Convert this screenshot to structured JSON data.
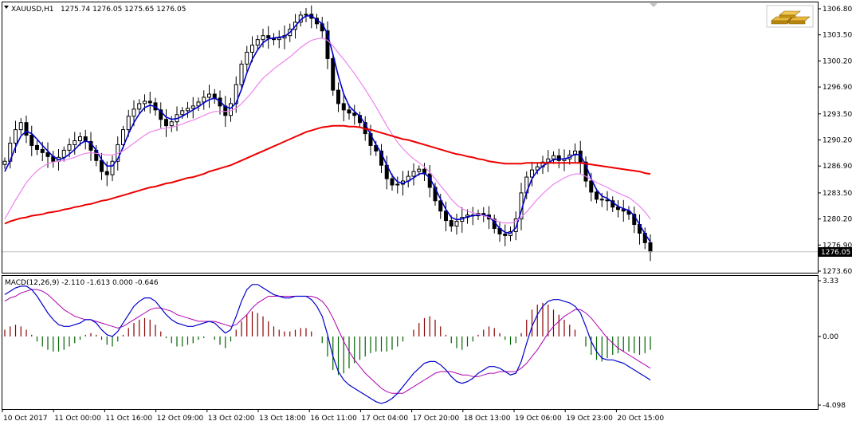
{
  "header": {
    "symbol": "XAUUSD,H1",
    "ohlc": "1275.74 1276.05 1275.65 1276.05",
    "icon": "gold-bars-icon"
  },
  "macd_header": {
    "label": "MACD(12,26,9) -2.110 -1.613 0.000 -0.646"
  },
  "colors": {
    "background": "#ffffff",
    "candle": "#000000",
    "ma_fast": "#0000cc",
    "ma_mid": "#ee82ee",
    "ma_slow": "#ee0000",
    "macd_up": "#8b0000",
    "macd_down": "#006400",
    "macd_line": "#0000cc",
    "signal_line": "#b000b0",
    "current_price_line": "#c0c0c0"
  },
  "chart_data": [
    {
      "type": "candlestick",
      "title": "XAUUSD,H1",
      "y_ticks": [
        1306.8,
        1303.5,
        1300.2,
        1296.9,
        1293.5,
        1290.2,
        1286.9,
        1283.5,
        1280.2,
        1276.9,
        1273.6
      ],
      "y_tick_labels": [
        "1306.80",
        "1303.50",
        "1300.20",
        "1296.90",
        "1293.50",
        "1290.20",
        "1286.90",
        "1283.50",
        "1280.20",
        "1276.90",
        "1273.60"
      ],
      "ylim": [
        1273.6,
        1306.8
      ],
      "current_price": 1276.05,
      "current_price_label": "1276.05",
      "x_labels": [
        "10 Oct 2017",
        "11 Oct 00:00",
        "11 Oct 16:00",
        "12 Oct 09:00",
        "13 Oct 02:00",
        "13 Oct 18:00",
        "16 Oct 11:00",
        "17 Oct 04:00",
        "17 Oct 20:00",
        "18 Oct 13:00",
        "19 Oct 06:00",
        "19 Oct 23:00",
        "20 Oct 15:00"
      ],
      "closes": [
        1287.5,
        1289.8,
        1291.5,
        1292.4,
        1290.8,
        1289.5,
        1289.0,
        1288.6,
        1288.1,
        1287.5,
        1288.0,
        1288.9,
        1289.6,
        1290.1,
        1290.6,
        1290.0,
        1288.9,
        1287.6,
        1286.2,
        1285.8,
        1287.5,
        1289.6,
        1291.5,
        1293.2,
        1294.1,
        1294.8,
        1295.1,
        1294.9,
        1294.0,
        1292.8,
        1292.0,
        1292.5,
        1293.4,
        1293.9,
        1294.2,
        1294.5,
        1295.0,
        1295.6,
        1296.0,
        1295.5,
        1294.5,
        1293.3,
        1294.8,
        1297.2,
        1299.8,
        1301.3,
        1302.2,
        1302.9,
        1303.4,
        1303.1,
        1302.9,
        1303.1,
        1303.4,
        1304.2,
        1305.1,
        1306.0,
        1306.1,
        1305.6,
        1304.9,
        1304.0,
        1300.5,
        1296.5,
        1294.8,
        1294.0,
        1293.6,
        1293.3,
        1292.4,
        1291.0,
        1289.5,
        1288.8,
        1287.0,
        1285.3,
        1284.5,
        1284.6,
        1285.0,
        1285.6,
        1286.2,
        1286.5,
        1285.9,
        1284.2,
        1282.5,
        1281.2,
        1280.0,
        1279.3,
        1279.9,
        1280.4,
        1280.7,
        1280.6,
        1280.9,
        1280.7,
        1280.2,
        1279.0,
        1278.3,
        1278.1,
        1278.6,
        1280.2,
        1283.5,
        1285.5,
        1286.4,
        1286.8,
        1287.4,
        1287.8,
        1288.2,
        1287.6,
        1287.8,
        1288.3,
        1288.8,
        1287.4,
        1285.0,
        1283.6,
        1282.7,
        1282.6,
        1282.5,
        1281.7,
        1281.4,
        1281.2,
        1280.8,
        1279.5,
        1278.4,
        1277.2,
        1276.05
      ],
      "series": [
        {
          "name": "",
          "values": [
            1286.2,
            1287.6,
            1289.3,
            1290.7,
            1291.3,
            1291.0,
            1290.3,
            1289.5,
            1288.8,
            1288.1,
            1287.7,
            1287.9,
            1288.4,
            1289.0,
            1289.7,
            1290.1,
            1289.8,
            1288.9,
            1287.7,
            1286.9,
            1286.9,
            1287.8,
            1289.3,
            1291.0,
            1292.4,
            1293.5,
            1294.3,
            1294.6,
            1294.4,
            1293.8,
            1293.1,
            1292.8,
            1292.9,
            1293.2,
            1293.6,
            1294.0,
            1294.4,
            1294.9,
            1295.3,
            1295.5,
            1295.1,
            1294.4,
            1294.2,
            1294.9,
            1296.6,
            1298.7,
            1300.4,
            1301.6,
            1302.5,
            1303.0,
            1303.1,
            1303.2,
            1303.3,
            1303.8,
            1304.6,
            1305.4,
            1305.9,
            1305.9,
            1305.4,
            1304.9,
            1303.6,
            1301.0,
            1298.3,
            1296.0,
            1294.5,
            1293.8,
            1293.2,
            1292.2,
            1290.9,
            1289.6,
            1288.5,
            1287.0,
            1285.7,
            1284.9,
            1284.7,
            1285.0,
            1285.4,
            1285.9,
            1286.0,
            1285.4,
            1284.1,
            1282.7,
            1281.4,
            1280.4,
            1280.1,
            1280.2,
            1280.5,
            1280.6,
            1280.7,
            1280.7,
            1280.5,
            1279.8,
            1279.0,
            1278.5,
            1278.4,
            1279.1,
            1281.2,
            1283.6,
            1285.3,
            1286.3,
            1286.9,
            1287.3,
            1287.7,
            1287.8,
            1287.8,
            1288.0,
            1288.4,
            1288.3,
            1287.0,
            1285.3,
            1283.9,
            1283.1,
            1282.8,
            1282.3,
            1281.8,
            1281.5,
            1281.3,
            1280.6,
            1279.5,
            1278.3,
            1277.3
          ]
        },
        {
          "name": "",
          "values": [
            1280.2,
            1281.4,
            1282.6,
            1283.7,
            1284.8,
            1285.6,
            1286.3,
            1286.8,
            1287.2,
            1287.4,
            1287.5,
            1287.6,
            1287.8,
            1288.0,
            1288.3,
            1288.5,
            1288.6,
            1288.5,
            1288.4,
            1288.3,
            1288.3,
            1288.5,
            1288.8,
            1289.3,
            1289.8,
            1290.3,
            1290.8,
            1291.2,
            1291.4,
            1291.6,
            1291.7,
            1291.8,
            1292.0,
            1292.2,
            1292.5,
            1292.7,
            1293.0,
            1293.3,
            1293.6,
            1293.8,
            1293.8,
            1293.8,
            1293.9,
            1294.2,
            1294.8,
            1295.5,
            1296.3,
            1297.2,
            1298.0,
            1298.6,
            1299.2,
            1299.7,
            1300.2,
            1300.7,
            1301.3,
            1301.9,
            1302.4,
            1302.8,
            1303.0,
            1303.1,
            1302.8,
            1302.1,
            1301.2,
            1300.4,
            1299.5,
            1298.6,
            1297.6,
            1296.6,
            1295.5,
            1294.4,
            1293.2,
            1292.0,
            1290.9,
            1289.9,
            1289.1,
            1288.4,
            1287.8,
            1287.3,
            1286.8,
            1286.1,
            1285.3,
            1284.4,
            1283.6,
            1282.7,
            1282.0,
            1281.5,
            1281.2,
            1281.0,
            1280.8,
            1280.6,
            1280.4,
            1280.1,
            1279.8,
            1279.7,
            1279.7,
            1279.9,
            1280.4,
            1281.1,
            1281.9,
            1282.7,
            1283.4,
            1284.0,
            1284.6,
            1285.0,
            1285.4,
            1285.7,
            1285.9,
            1285.9,
            1285.6,
            1285.2,
            1284.8,
            1284.5,
            1284.2,
            1283.8,
            1283.5,
            1283.2,
            1282.9,
            1282.4,
            1281.8,
            1281.1,
            1280.2
          ]
        },
        {
          "name": "",
          "values": [
            1279.6,
            1279.9,
            1280.1,
            1280.3,
            1280.4,
            1280.6,
            1280.7,
            1280.8,
            1281.0,
            1281.1,
            1281.2,
            1281.4,
            1281.5,
            1281.7,
            1281.8,
            1282.0,
            1282.1,
            1282.3,
            1282.5,
            1282.6,
            1282.8,
            1283.0,
            1283.2,
            1283.4,
            1283.6,
            1283.8,
            1284.0,
            1284.2,
            1284.3,
            1284.5,
            1284.7,
            1284.8,
            1285.0,
            1285.2,
            1285.4,
            1285.5,
            1285.7,
            1285.9,
            1286.2,
            1286.4,
            1286.6,
            1286.8,
            1287.0,
            1287.3,
            1287.6,
            1287.9,
            1288.2,
            1288.5,
            1288.8,
            1289.1,
            1289.4,
            1289.7,
            1290.0,
            1290.3,
            1290.6,
            1290.9,
            1291.2,
            1291.4,
            1291.6,
            1291.8,
            1291.9,
            1292.0,
            1292.0,
            1292.0,
            1291.9,
            1291.9,
            1291.8,
            1291.6,
            1291.5,
            1291.3,
            1291.1,
            1290.9,
            1290.7,
            1290.5,
            1290.3,
            1290.2,
            1290.0,
            1289.8,
            1289.6,
            1289.4,
            1289.2,
            1289.0,
            1288.8,
            1288.6,
            1288.4,
            1288.3,
            1288.1,
            1288.0,
            1287.8,
            1287.7,
            1287.5,
            1287.4,
            1287.3,
            1287.2,
            1287.2,
            1287.2,
            1287.2,
            1287.3,
            1287.3,
            1287.3,
            1287.3,
            1287.3,
            1287.3,
            1287.3,
            1287.3,
            1287.3,
            1287.3,
            1287.3,
            1287.2,
            1287.1,
            1287.0,
            1286.9,
            1286.8,
            1286.7,
            1286.6,
            1286.5,
            1286.4,
            1286.3,
            1286.2,
            1286.0,
            1285.9
          ]
        }
      ]
    },
    {
      "type": "bar",
      "title": "MACD(12,26,9)",
      "y_ticks": [
        3.33,
        0.0,
        -4.098
      ],
      "y_tick_labels": [
        "3.33",
        "0.00",
        "-4.098"
      ],
      "ylim": [
        -4.098,
        3.33
      ],
      "histogram": [
        0.4,
        0.6,
        0.7,
        0.6,
        0.4,
        0.1,
        -0.3,
        -0.6,
        -0.8,
        -0.9,
        -0.9,
        -0.8,
        -0.6,
        -0.4,
        -0.2,
        0.1,
        0.2,
        0.1,
        -0.2,
        -0.5,
        -0.6,
        -0.3,
        0.1,
        0.5,
        0.8,
        1.0,
        1.1,
        1.0,
        0.7,
        0.3,
        -0.1,
        -0.4,
        -0.6,
        -0.6,
        -0.5,
        -0.4,
        -0.2,
        -0.1,
        0.0,
        -0.2,
        -0.5,
        -0.7,
        -0.3,
        0.4,
        0.9,
        1.3,
        1.5,
        1.4,
        1.2,
        0.9,
        0.6,
        0.4,
        0.3,
        0.3,
        0.4,
        0.5,
        0.5,
        0.3,
        0.0,
        -0.4,
        -1.2,
        -2.0,
        -2.3,
        -2.2,
        -1.9,
        -1.6,
        -1.4,
        -1.2,
        -1.0,
        -0.9,
        -0.9,
        -0.9,
        -0.8,
        -0.6,
        -0.3,
        0.0,
        0.4,
        0.8,
        1.1,
        1.2,
        1.0,
        0.6,
        0.1,
        -0.4,
        -0.7,
        -0.8,
        -0.6,
        -0.3,
        0.1,
        0.4,
        0.6,
        0.5,
        0.2,
        -0.2,
        -0.5,
        -0.4,
        0.2,
        1.0,
        1.6,
        1.9,
        2.0,
        1.9,
        1.6,
        1.3,
        1.0,
        0.7,
        0.4,
        0.0,
        -0.6,
        -1.1,
        -1.4,
        -1.5,
        -1.3,
        -1.1,
        -1.0,
        -0.9,
        -0.9,
        -1.0,
        -1.1,
        -1.0,
        -0.8
      ],
      "macd": [
        2.5,
        2.7,
        2.9,
        3.0,
        3.0,
        2.8,
        2.4,
        1.9,
        1.4,
        1.0,
        0.7,
        0.6,
        0.6,
        0.7,
        0.8,
        1.0,
        1.0,
        0.8,
        0.4,
        0.1,
        0.0,
        0.3,
        0.8,
        1.3,
        1.8,
        2.1,
        2.3,
        2.3,
        2.1,
        1.7,
        1.3,
        1.0,
        0.8,
        0.7,
        0.6,
        0.6,
        0.7,
        0.8,
        0.9,
        0.8,
        0.5,
        0.2,
        0.4,
        1.2,
        2.1,
        2.8,
        3.1,
        3.1,
        2.9,
        2.7,
        2.5,
        2.4,
        2.3,
        2.3,
        2.4,
        2.4,
        2.4,
        2.2,
        1.8,
        1.2,
        0.1,
        -1.2,
        -2.1,
        -2.6,
        -2.9,
        -3.1,
        -3.3,
        -3.5,
        -3.7,
        -3.9,
        -4.0,
        -3.9,
        -3.7,
        -3.4,
        -3.0,
        -2.6,
        -2.2,
        -1.9,
        -1.6,
        -1.5,
        -1.5,
        -1.7,
        -2.0,
        -2.4,
        -2.7,
        -2.8,
        -2.7,
        -2.5,
        -2.2,
        -2.0,
        -1.8,
        -1.8,
        -1.9,
        -2.1,
        -2.3,
        -2.2,
        -1.5,
        -0.4,
        0.6,
        1.3,
        1.8,
        2.1,
        2.2,
        2.2,
        2.1,
        2.0,
        1.8,
        1.4,
        0.6,
        -0.3,
        -0.9,
        -1.3,
        -1.4,
        -1.4,
        -1.5,
        -1.6,
        -1.8,
        -2.0,
        -2.2,
        -2.4,
        -2.6
      ],
      "signal": [
        2.1,
        2.3,
        2.4,
        2.6,
        2.7,
        2.8,
        2.8,
        2.7,
        2.5,
        2.2,
        1.9,
        1.6,
        1.4,
        1.2,
        1.1,
        1.0,
        1.0,
        0.9,
        0.8,
        0.7,
        0.6,
        0.5,
        0.6,
        0.8,
        1.0,
        1.2,
        1.4,
        1.6,
        1.7,
        1.7,
        1.6,
        1.5,
        1.3,
        1.2,
        1.1,
        1.0,
        0.9,
        0.9,
        0.9,
        0.9,
        0.8,
        0.7,
        0.6,
        0.7,
        1.0,
        1.3,
        1.7,
        2.0,
        2.2,
        2.4,
        2.4,
        2.4,
        2.4,
        2.4,
        2.4,
        2.4,
        2.4,
        2.4,
        2.3,
        2.1,
        1.7,
        1.1,
        0.4,
        -0.3,
        -0.9,
        -1.4,
        -1.8,
        -2.2,
        -2.5,
        -2.8,
        -3.1,
        -3.3,
        -3.4,
        -3.4,
        -3.4,
        -3.2,
        -3.0,
        -2.8,
        -2.6,
        -2.4,
        -2.2,
        -2.1,
        -2.1,
        -2.1,
        -2.2,
        -2.3,
        -2.3,
        -2.4,
        -2.4,
        -2.3,
        -2.2,
        -2.2,
        -2.1,
        -2.1,
        -2.1,
        -2.1,
        -1.9,
        -1.6,
        -1.2,
        -0.8,
        -0.3,
        0.2,
        0.6,
        0.9,
        1.2,
        1.4,
        1.6,
        1.6,
        1.4,
        1.1,
        0.7,
        0.3,
        -0.1,
        -0.4,
        -0.7,
        -0.9,
        -1.1,
        -1.3,
        -1.5,
        -1.7,
        -1.9
      ]
    }
  ]
}
